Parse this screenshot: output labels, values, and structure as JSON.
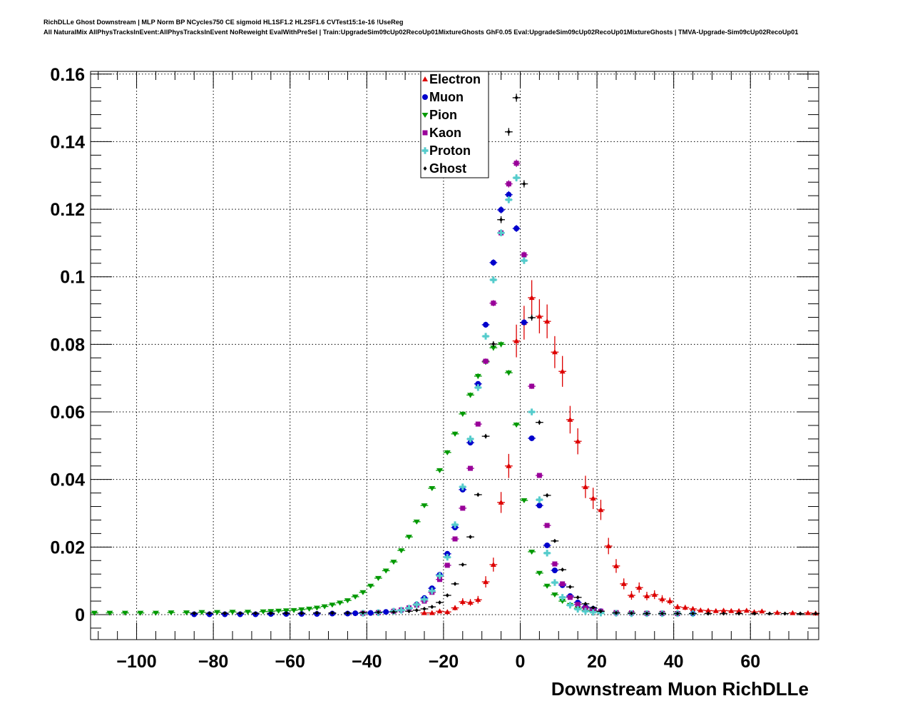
{
  "chart_data": {
    "type": "scatter",
    "title_line1": "RichDLLe Ghost Downstream | MLP Norm BP NCycles750 CE sigmoid HL1SF1.2 HL2SF1.6 CVTest15:1e-16 !UseReg",
    "title_line2": "All NaturalMix AllPhysTracksInEvent:AllPhysTracksInEvent NoReweight EvalWithPreSel | Train:UpgradeSim09cUp02RecoUp01MixtureGhosts GhF0.05 Eval:UpgradeSim09cUp02RecoUp01MixtureGhosts | TMVA-Upgrade-Sim09cUp02RecoUp01",
    "xlabel": "Downstream Muon RichDLLe",
    "ylabel": "",
    "xlim": [
      -112,
      77.8
    ],
    "ylim": [
      -0.0074,
      0.1608
    ],
    "grid": true,
    "bin_width": 2,
    "legend_position": "top-center",
    "x_ticks": [
      -100,
      -80,
      -60,
      -40,
      -20,
      0,
      20,
      40,
      60
    ],
    "x_tick_labels": [
      "−100",
      "−80",
      "−60",
      "−40",
      "−20",
      "0",
      "20",
      "40",
      "60"
    ],
    "y_ticks": [
      0,
      0.02,
      0.04,
      0.06,
      0.08,
      0.1,
      0.12,
      0.14,
      0.16
    ],
    "y_tick_labels": [
      "0",
      "0.02",
      "0.04",
      "0.06",
      "0.08",
      "0.1",
      "0.12",
      "0.14",
      "0.16"
    ],
    "series": [
      {
        "name": "Electron",
        "color": "#dd0000",
        "marker": "triangle-up",
        "err_scale": 0.017,
        "x": [
          -25,
          -23,
          -21,
          -19,
          -17,
          -15,
          -13,
          -11,
          -9,
          -7,
          -5,
          -3,
          -1,
          1,
          3,
          5,
          7,
          9,
          11,
          13,
          15,
          17,
          19,
          21,
          23,
          25,
          27,
          29,
          31,
          33,
          35,
          37,
          39,
          41,
          43,
          45,
          47,
          49,
          51,
          53,
          55,
          57,
          59,
          61,
          63,
          67,
          71,
          75,
          77
        ],
        "y": [
          0.0005,
          0.0005,
          0.001,
          0.0008,
          0.002,
          0.0038,
          0.0036,
          0.0044,
          0.0097,
          0.0148,
          0.0332,
          0.044,
          0.081,
          0.0864,
          0.0938,
          0.0883,
          0.0868,
          0.0777,
          0.072,
          0.0577,
          0.0513,
          0.0378,
          0.0344,
          0.031,
          0.0203,
          0.0144,
          0.0091,
          0.0057,
          0.008,
          0.0055,
          0.0059,
          0.0046,
          0.004,
          0.0023,
          0.0021,
          0.0017,
          0.0013,
          0.0012,
          0.0011,
          0.0012,
          0.0011,
          0.0011,
          0.0012,
          0.0008,
          0.001,
          0.0006,
          0.0005,
          0.0005,
          0.0004
        ]
      },
      {
        "name": "Muon",
        "color": "#0000cc",
        "marker": "circle",
        "err_scale": 0.003,
        "x": [
          -85,
          -81,
          -77,
          -73,
          -69,
          -65,
          -61,
          -57,
          -53,
          -49,
          -45,
          -43,
          -41,
          -39,
          -37,
          -35,
          -33,
          -31,
          -29,
          -27,
          -25,
          -23,
          -21,
          -19,
          -17,
          -15,
          -13,
          -11,
          -9,
          -7,
          -5,
          -3,
          -1,
          1,
          3,
          5,
          7,
          9,
          11,
          13,
          15,
          17,
          19,
          21,
          25,
          29,
          33,
          37,
          41,
          45
        ],
        "y": [
          0.0001,
          0.0001,
          0.0001,
          0.0001,
          0.0001,
          0.0002,
          0.0002,
          0.0002,
          0.0002,
          0.0003,
          0.0003,
          0.0004,
          0.0004,
          0.0005,
          0.0006,
          0.0008,
          0.001,
          0.0013,
          0.0019,
          0.003,
          0.0049,
          0.0078,
          0.0118,
          0.018,
          0.0258,
          0.037,
          0.0509,
          0.0683,
          0.0858,
          0.1042,
          0.1198,
          0.1243,
          0.1143,
          0.0865,
          0.0522,
          0.0323,
          0.0205,
          0.0131,
          0.0087,
          0.0055,
          0.0036,
          0.0023,
          0.0017,
          0.001,
          0.0005,
          0.0004,
          0.0003,
          0.0003,
          0.0003,
          0.0003
        ]
      },
      {
        "name": "Pion",
        "color": "#009900",
        "marker": "triangle-down",
        "err_scale": 0.003,
        "x": [
          -111,
          -107,
          -103,
          -99,
          -95,
          -91,
          -87,
          -83,
          -79,
          -75,
          -71,
          -67,
          -65,
          -63,
          -61,
          -59,
          -57,
          -55,
          -53,
          -51,
          -49,
          -47,
          -45,
          -43,
          -41,
          -39,
          -37,
          -35,
          -33,
          -31,
          -29,
          -27,
          -25,
          -23,
          -21,
          -19,
          -17,
          -15,
          -13,
          -11,
          -9,
          -7,
          -5,
          -3,
          -1,
          1,
          3,
          5,
          7,
          9,
          11,
          13,
          15,
          17,
          19,
          21,
          25,
          29,
          33,
          37,
          41
        ],
        "y": [
          0.0005,
          0.0005,
          0.0005,
          0.0005,
          0.0005,
          0.0006,
          0.0006,
          0.0007,
          0.0007,
          0.0008,
          0.0008,
          0.0009,
          0.001,
          0.0011,
          0.0012,
          0.0013,
          0.0015,
          0.0017,
          0.002,
          0.0024,
          0.0029,
          0.0035,
          0.0042,
          0.0053,
          0.0066,
          0.0085,
          0.0108,
          0.013,
          0.0156,
          0.019,
          0.023,
          0.0275,
          0.0323,
          0.0374,
          0.0427,
          0.048,
          0.0535,
          0.0594,
          0.065,
          0.0706,
          0.0748,
          0.079,
          0.08,
          0.0716,
          0.0562,
          0.0338,
          0.0186,
          0.0123,
          0.0085,
          0.0059,
          0.004,
          0.0028,
          0.0019,
          0.0013,
          0.001,
          0.0005,
          0.0004,
          0.0004,
          0.0003,
          0.0003,
          0.0003
        ]
      },
      {
        "name": "Kaon",
        "color": "#990099",
        "marker": "square",
        "err_scale": 0.003,
        "x": [
          -41,
          -37,
          -33,
          -31,
          -29,
          -27,
          -25,
          -23,
          -21,
          -19,
          -17,
          -15,
          -13,
          -11,
          -9,
          -7,
          -5,
          -3,
          -1,
          1,
          3,
          5,
          7,
          9,
          11,
          13,
          15,
          17,
          19,
          21,
          25,
          29,
          33,
          37,
          41
        ],
        "y": [
          0.0004,
          0.0006,
          0.001,
          0.0014,
          0.002,
          0.0028,
          0.004,
          0.0066,
          0.0104,
          0.0146,
          0.0224,
          0.0315,
          0.0433,
          0.0564,
          0.075,
          0.0922,
          0.113,
          0.1275,
          0.1336,
          0.1065,
          0.0676,
          0.0412,
          0.0264,
          0.015,
          0.0091,
          0.0051,
          0.003,
          0.002,
          0.0013,
          0.001,
          0.0006,
          0.0005,
          0.0004,
          0.0004,
          0.0003
        ]
      },
      {
        "name": "Proton",
        "color": "#55cccc",
        "marker": "cross",
        "err_scale": 0.003,
        "x": [
          -41,
          -37,
          -33,
          -31,
          -29,
          -27,
          -25,
          -23,
          -21,
          -19,
          -17,
          -15,
          -13,
          -11,
          -9,
          -7,
          -5,
          -3,
          -1,
          1,
          3,
          5,
          7,
          9,
          11,
          13,
          15,
          17,
          19,
          21,
          25,
          29,
          33,
          37,
          41,
          45
        ],
        "y": [
          0.0004,
          0.0006,
          0.001,
          0.0013,
          0.0019,
          0.003,
          0.0045,
          0.007,
          0.0115,
          0.017,
          0.0266,
          0.0378,
          0.052,
          0.0672,
          0.0824,
          0.0991,
          0.113,
          0.1228,
          0.1293,
          0.1048,
          0.06,
          0.034,
          0.0182,
          0.0095,
          0.0051,
          0.0028,
          0.0016,
          0.001,
          0.0007,
          0.0005,
          0.0004,
          0.0003,
          0.0003,
          0.0003,
          0.0003,
          0.0003
        ]
      },
      {
        "name": "Ghost",
        "color": "#000000",
        "marker": "diamond",
        "err_scale": 0.003,
        "x": [
          -85,
          -81,
          -77,
          -73,
          -69,
          -65,
          -61,
          -57,
          -53,
          -49,
          -45,
          -41,
          -37,
          -33,
          -29,
          -27,
          -25,
          -23,
          -21,
          -19,
          -17,
          -15,
          -13,
          -11,
          -9,
          -7,
          -5,
          -3,
          -1,
          1,
          3,
          5,
          7,
          9,
          11,
          13,
          15,
          17,
          19,
          21,
          25,
          29,
          33,
          37,
          41,
          45,
          49,
          53,
          57,
          61,
          65,
          69,
          73,
          77
        ],
        "y": [
          0.0004,
          0.0004,
          0.0004,
          0.0004,
          0.0004,
          0.0004,
          0.0004,
          0.0004,
          0.0005,
          0.0005,
          0.0005,
          0.0006,
          0.0007,
          0.0008,
          0.001,
          0.0013,
          0.0017,
          0.0023,
          0.0036,
          0.0057,
          0.0091,
          0.0148,
          0.023,
          0.0355,
          0.0528,
          0.0801,
          0.1169,
          0.1429,
          0.153,
          0.1275,
          0.0879,
          0.0569,
          0.0353,
          0.0218,
          0.0133,
          0.0082,
          0.0051,
          0.0032,
          0.0021,
          0.001,
          0.0005,
          0.0004,
          0.0003,
          0.0003,
          0.0003,
          0.0003,
          0.0003,
          0.0003,
          0.0003,
          0.0003,
          0.0003,
          0.0003,
          0.0003,
          0.0003
        ]
      }
    ]
  }
}
